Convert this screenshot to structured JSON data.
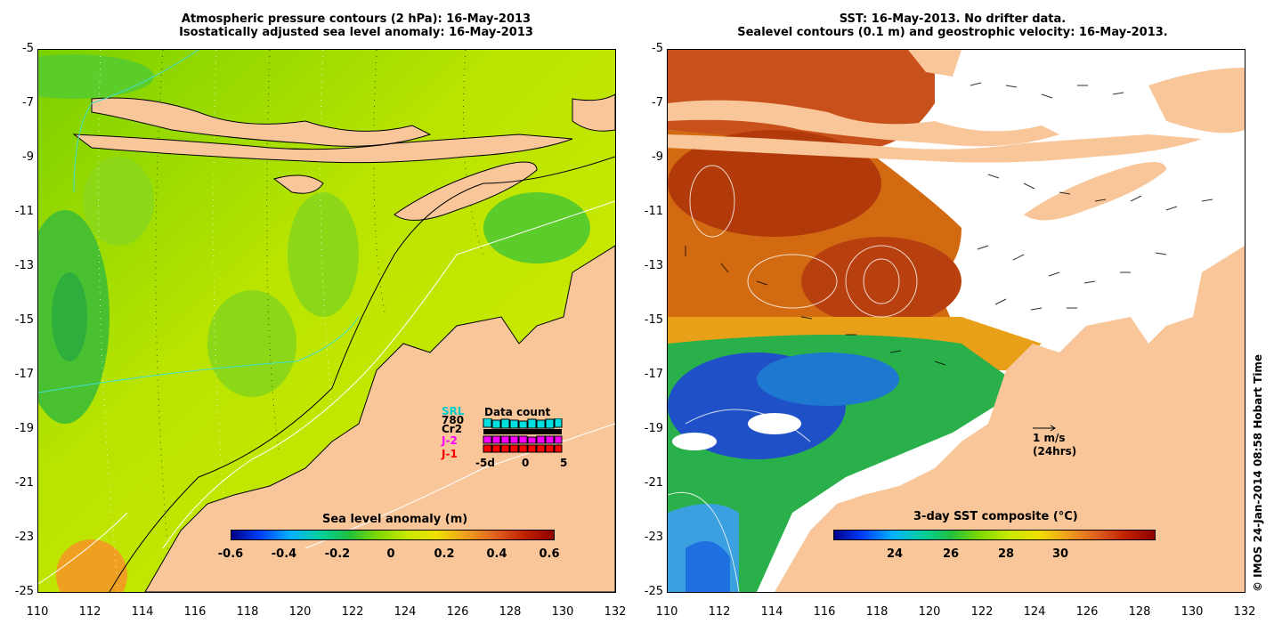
{
  "left_panel": {
    "title_line1": "Atmospheric pressure contours (2 hPa): 16-May-2013",
    "title_line2": "Isostatically adjusted sea level anomaly: 16-May-2013",
    "colorbar_title": "Sea level anomaly (m)",
    "colorbar_ticks": [
      "-0.6",
      "-0.4",
      "-0.2",
      "0",
      "0.2",
      "0.4",
      "0.6"
    ],
    "inset": {
      "labels": [
        "SRL",
        "780",
        "Cr2",
        "J-2",
        "J-1"
      ],
      "label_colors": [
        "#00cccc",
        "#000000",
        "#000000",
        "#ff00ff",
        "#ff0000"
      ],
      "title": "Data count",
      "ticks": [
        "-5d",
        "0",
        "5"
      ]
    }
  },
  "right_panel": {
    "title_line1": "SST: 16-May-2013. No drifter data.",
    "title_line2": "Sealevel contours (0.1 m) and geostrophic velocity: 16-May-2013.",
    "colorbar_title": "3-day SST composite (°C)",
    "colorbar_ticks": [
      "24",
      "26",
      "28",
      "30"
    ],
    "scale_label": "1 m/s",
    "scale_sub": "(24hrs)"
  },
  "axes": {
    "y_ticks": [
      "-5",
      "-7",
      "-9",
      "-11",
      "-13",
      "-15",
      "-17",
      "-19",
      "-21",
      "-23",
      "-25"
    ],
    "x_ticks": [
      "110",
      "112",
      "114",
      "116",
      "118",
      "120",
      "122",
      "124",
      "126",
      "128",
      "130",
      "132"
    ]
  },
  "copyright": "© IMOS 24-Jan-2014 08:58 Hobart Time",
  "colors": {
    "land": "#f9c69a",
    "sla_base": "#a6e000",
    "ocean_green": "#5ccc2a"
  }
}
